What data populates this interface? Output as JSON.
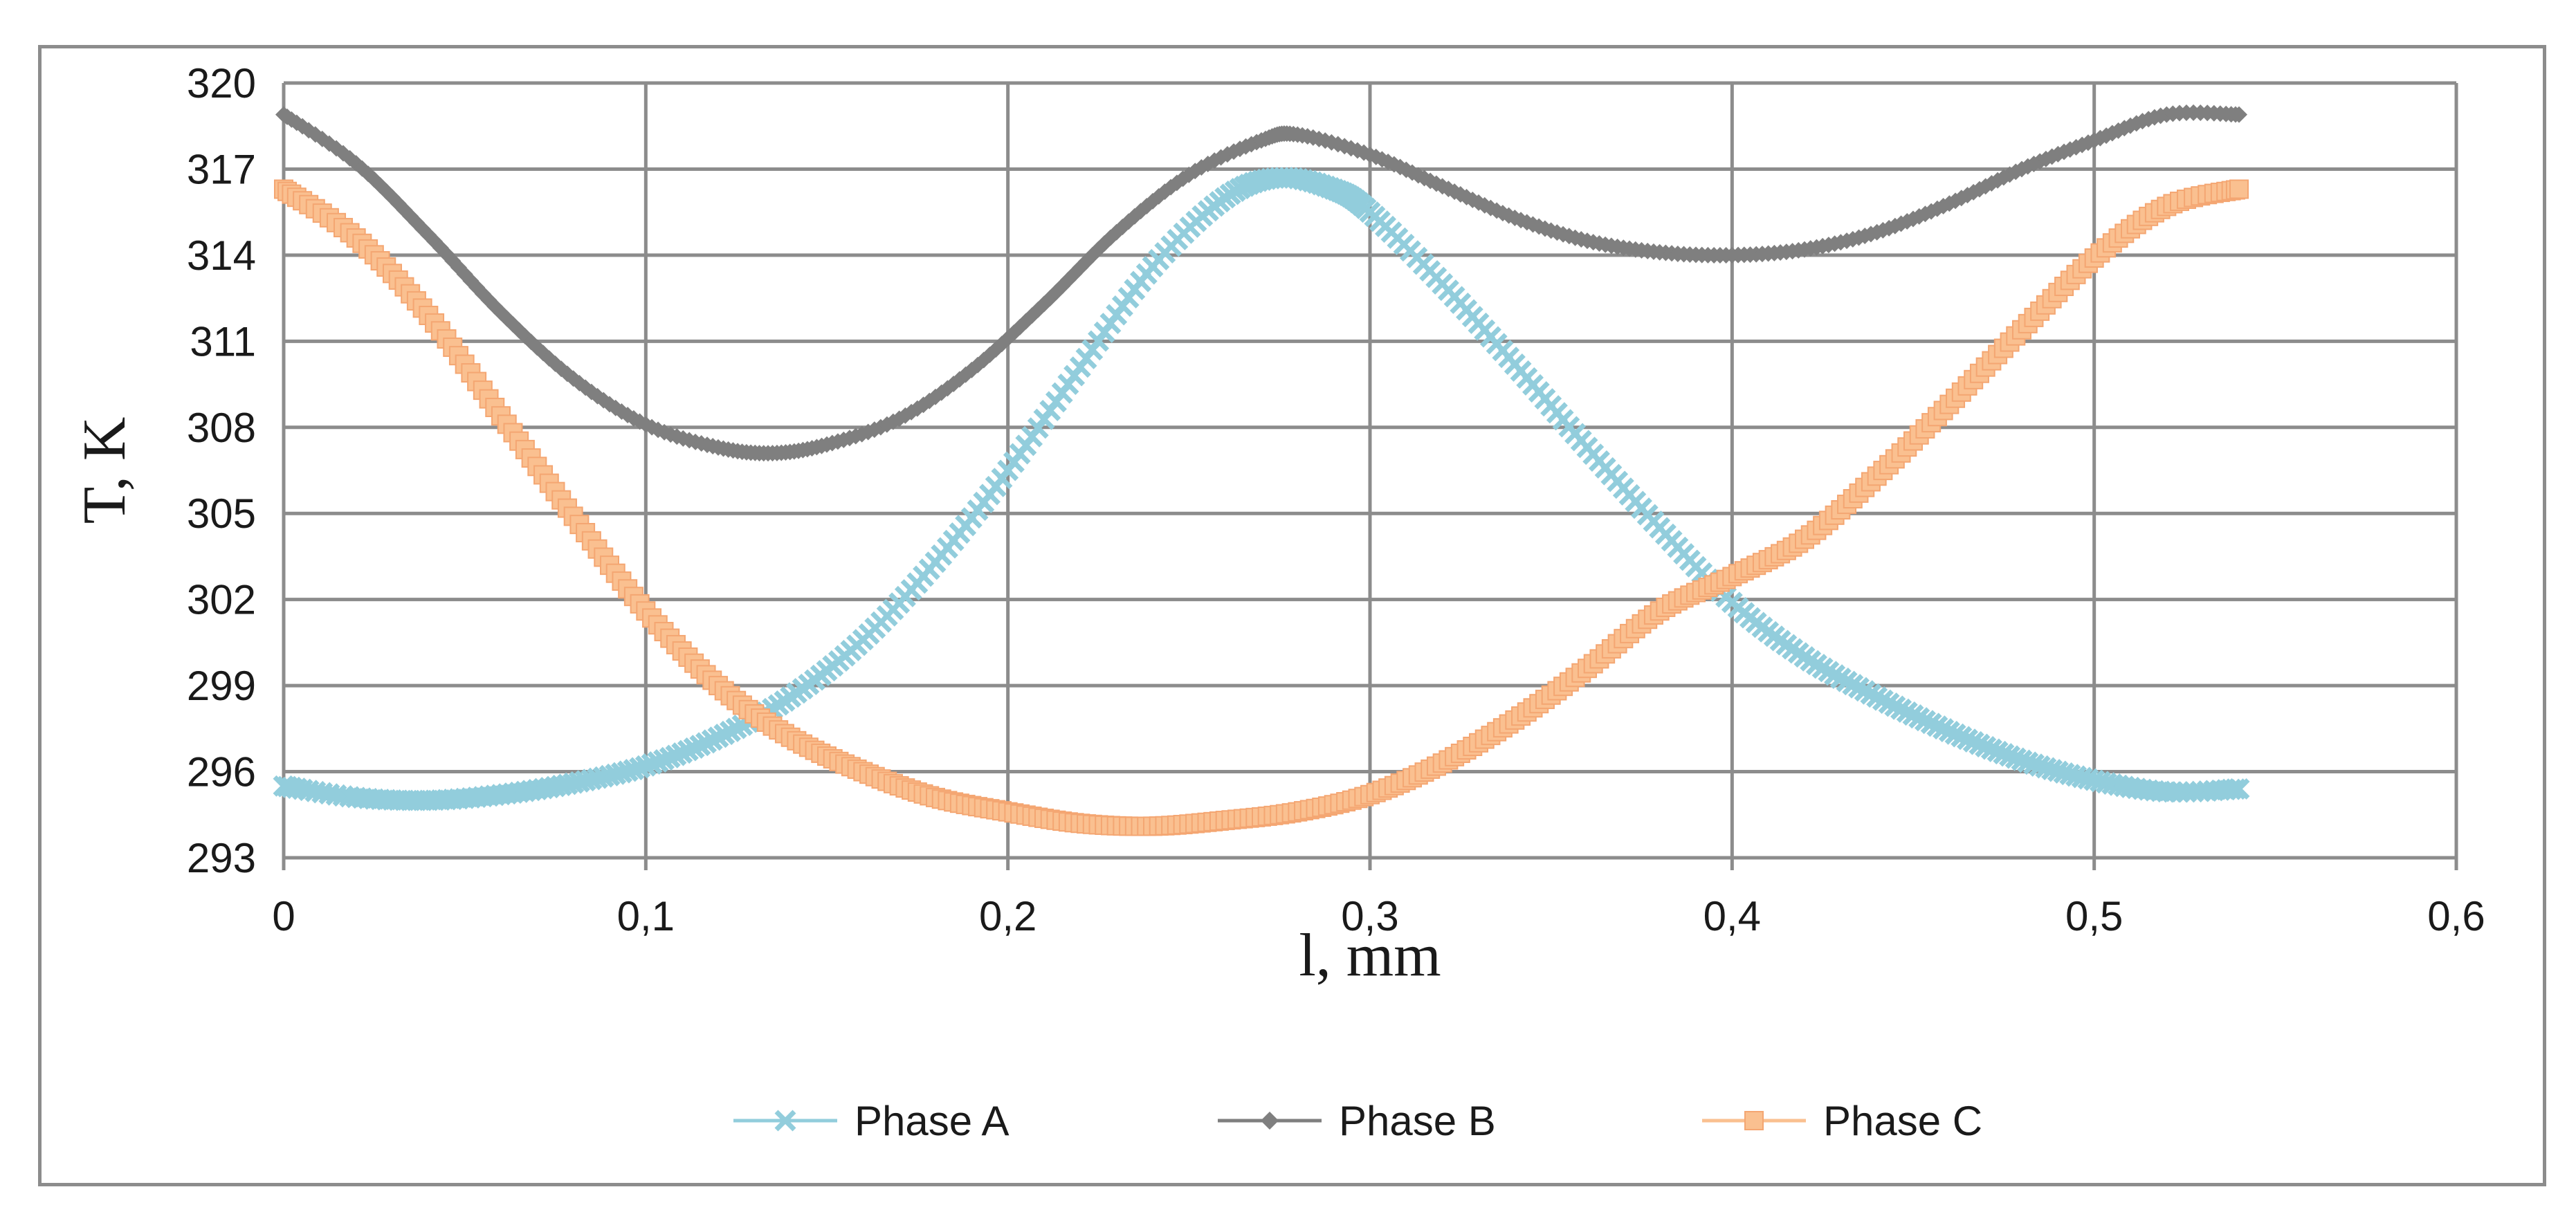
{
  "chart_data": {
    "type": "line",
    "title": "",
    "xlabel": "l, mm",
    "ylabel": "T, K",
    "xlim": [
      0,
      0.6
    ],
    "ylim": [
      293,
      320
    ],
    "xticks": [
      0,
      0.1,
      0.2,
      0.3,
      0.4,
      0.5,
      0.6
    ],
    "xtick_labels": [
      "0",
      "0,1",
      "0,2",
      "0,3",
      "0,4",
      "0,5",
      "0,6"
    ],
    "yticks": [
      293,
      296,
      299,
      302,
      305,
      308,
      311,
      314,
      317,
      320
    ],
    "ytick_labels": [
      "293",
      "296",
      "299",
      "302",
      "305",
      "308",
      "311",
      "314",
      "317",
      "320"
    ],
    "grid": true,
    "legend_position": "bottom",
    "series": [
      {
        "name": "Phase A",
        "color": "#92cddc",
        "marker": "x",
        "x": [
          0,
          0.02,
          0.04,
          0.06,
          0.08,
          0.1,
          0.12,
          0.14,
          0.16,
          0.18,
          0.2,
          0.22,
          0.24,
          0.26,
          0.275,
          0.29,
          0.3,
          0.32,
          0.34,
          0.36,
          0.38,
          0.4,
          0.42,
          0.44,
          0.46,
          0.48,
          0.5,
          0.52,
          0.54
        ],
        "y": [
          295.5,
          295.1,
          295.0,
          295.2,
          295.6,
          296.2,
          297.2,
          298.6,
          300.6,
          303.3,
          306.5,
          310.1,
          313.6,
          316.0,
          316.7,
          316.3,
          315.5,
          313.0,
          310.2,
          307.3,
          304.5,
          301.9,
          300.0,
          298.6,
          297.4,
          296.4,
          295.7,
          295.3,
          295.4
        ]
      },
      {
        "name": "Phase B",
        "color": "#7f7f7f",
        "marker": "diamond",
        "x": [
          0,
          0.02,
          0.04,
          0.06,
          0.08,
          0.1,
          0.12,
          0.135,
          0.15,
          0.17,
          0.19,
          0.21,
          0.23,
          0.25,
          0.27,
          0.28,
          0.3,
          0.32,
          0.34,
          0.36,
          0.38,
          0.4,
          0.42,
          0.44,
          0.46,
          0.48,
          0.5,
          0.52,
          0.54
        ],
        "y": [
          318.9,
          317.2,
          314.7,
          312.0,
          309.7,
          308.1,
          307.3,
          307.1,
          307.4,
          308.3,
          310.0,
          312.3,
          314.8,
          316.8,
          318.0,
          318.2,
          317.5,
          316.4,
          315.3,
          314.5,
          314.1,
          314.0,
          314.2,
          314.8,
          315.8,
          317.0,
          318.0,
          318.9,
          318.9
        ]
      },
      {
        "name": "Phase C",
        "color": "#fac090",
        "marker": "square",
        "x": [
          0,
          0.02,
          0.04,
          0.06,
          0.08,
          0.1,
          0.12,
          0.14,
          0.16,
          0.18,
          0.2,
          0.22,
          0.24,
          0.26,
          0.28,
          0.3,
          0.32,
          0.34,
          0.36,
          0.38,
          0.4,
          0.42,
          0.44,
          0.46,
          0.48,
          0.5,
          0.52,
          0.54
        ],
        "y": [
          316.3,
          314.6,
          311.9,
          308.4,
          304.9,
          301.6,
          299.0,
          297.2,
          296.0,
          295.1,
          294.6,
          294.2,
          294.1,
          294.3,
          294.6,
          295.2,
          296.3,
          297.8,
          299.6,
          301.6,
          302.8,
          304.1,
          306.3,
          308.8,
          311.4,
          313.9,
          315.7,
          316.3
        ]
      }
    ]
  }
}
